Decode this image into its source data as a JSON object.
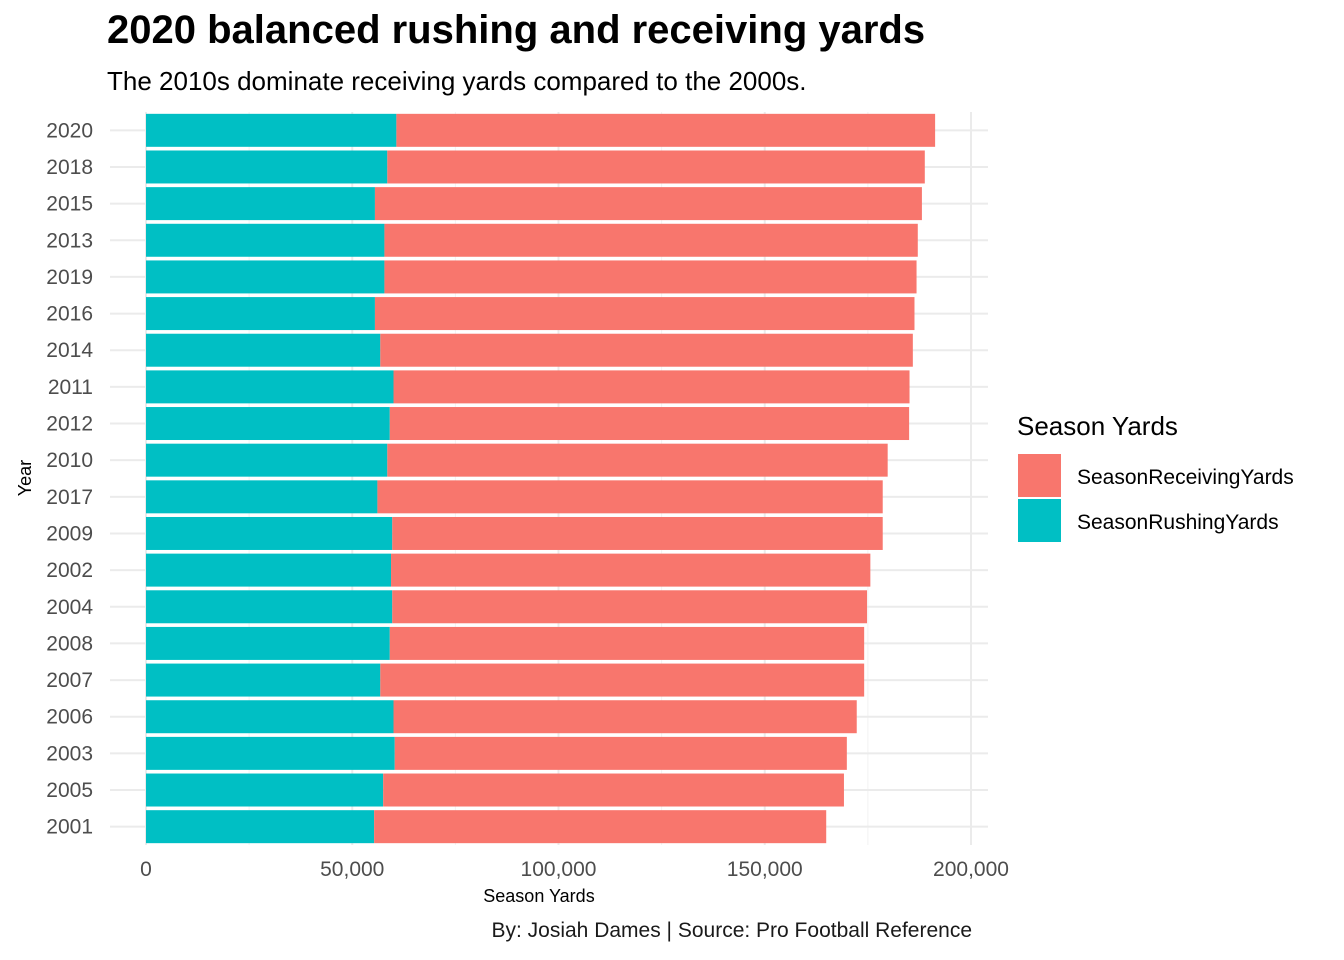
{
  "chart_data": {
    "type": "bar",
    "orientation": "horizontal",
    "stacked": true,
    "title": "2020 balanced rushing and receiving yards",
    "subtitle": "The 2010s dominate receiving yards compared to the 2000s.",
    "caption": "By: Josiah Dames | Source: Pro Football Reference",
    "xlabel": "Season Yards",
    "ylabel": "Year",
    "xlim": [
      0,
      200000
    ],
    "xticks": [
      0,
      50000,
      100000,
      150000,
      200000
    ],
    "xtick_labels": [
      "0",
      "50,000",
      "100,000",
      "150,000",
      "200,000"
    ],
    "grid": true,
    "legend": {
      "title": "Season Yards",
      "position": "right",
      "entries": [
        "SeasonReceivingYards",
        "SeasonRushingYards"
      ]
    },
    "colors": {
      "SeasonReceivingYards": "#F8766D",
      "SeasonRushingYards": "#00BFC4"
    },
    "categories": [
      "2020",
      "2018",
      "2015",
      "2013",
      "2019",
      "2016",
      "2014",
      "2011",
      "2012",
      "2010",
      "2017",
      "2009",
      "2002",
      "2004",
      "2008",
      "2007",
      "2006",
      "2003",
      "2005",
      "2001"
    ],
    "series": [
      {
        "name": "SeasonRushingYards",
        "values": [
          60700,
          58500,
          55500,
          57800,
          57800,
          55500,
          56800,
          60000,
          59100,
          58500,
          56100,
          59700,
          59400,
          59700,
          59100,
          56800,
          60000,
          60300,
          57500,
          55300
        ]
      },
      {
        "name": "SeasonReceivingYards",
        "values": [
          130600,
          130300,
          132600,
          129300,
          129000,
          130800,
          129100,
          125100,
          125900,
          121300,
          122500,
          118900,
          116200,
          115100,
          115000,
          117300,
          112300,
          109600,
          111700,
          109600
        ]
      }
    ]
  }
}
